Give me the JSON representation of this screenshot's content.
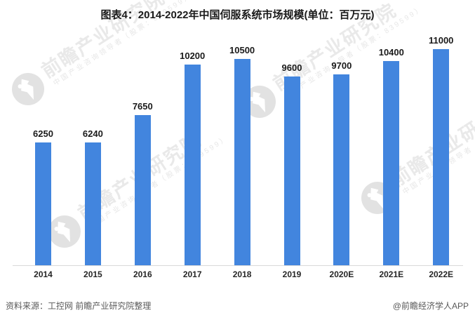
{
  "title": "图表4：2014-2022年中国伺服系统市场规模(单位：百万元)",
  "chart_data": {
    "type": "bar",
    "title": "图表4：2014-2022年中国伺服系统市场规模(单位：百万元)",
    "unit": "百万元",
    "categories": [
      "2014",
      "2015",
      "2016",
      "2017",
      "2018",
      "2019",
      "2020E",
      "2021E",
      "2022E"
    ],
    "values": [
      6250,
      6240,
      7650,
      10200,
      10500,
      9600,
      9700,
      10400,
      11000
    ],
    "xlabel": "",
    "ylabel": "",
    "ylim": [
      0,
      11000
    ],
    "grid": false,
    "legend_position": "none",
    "data_labels": true,
    "bar_color": "#4285DE",
    "axis_line_color": "#d9d9d9"
  },
  "watermark": {
    "brand": "前瞻产业研究院",
    "tagline": "中国产业咨询领导者（股票：839599）",
    "logo": "qianzhan-logo"
  },
  "footer": {
    "source": "资料来源：工控网 前瞻产业研究院整理",
    "credit": "@前瞻经济学人APP"
  }
}
